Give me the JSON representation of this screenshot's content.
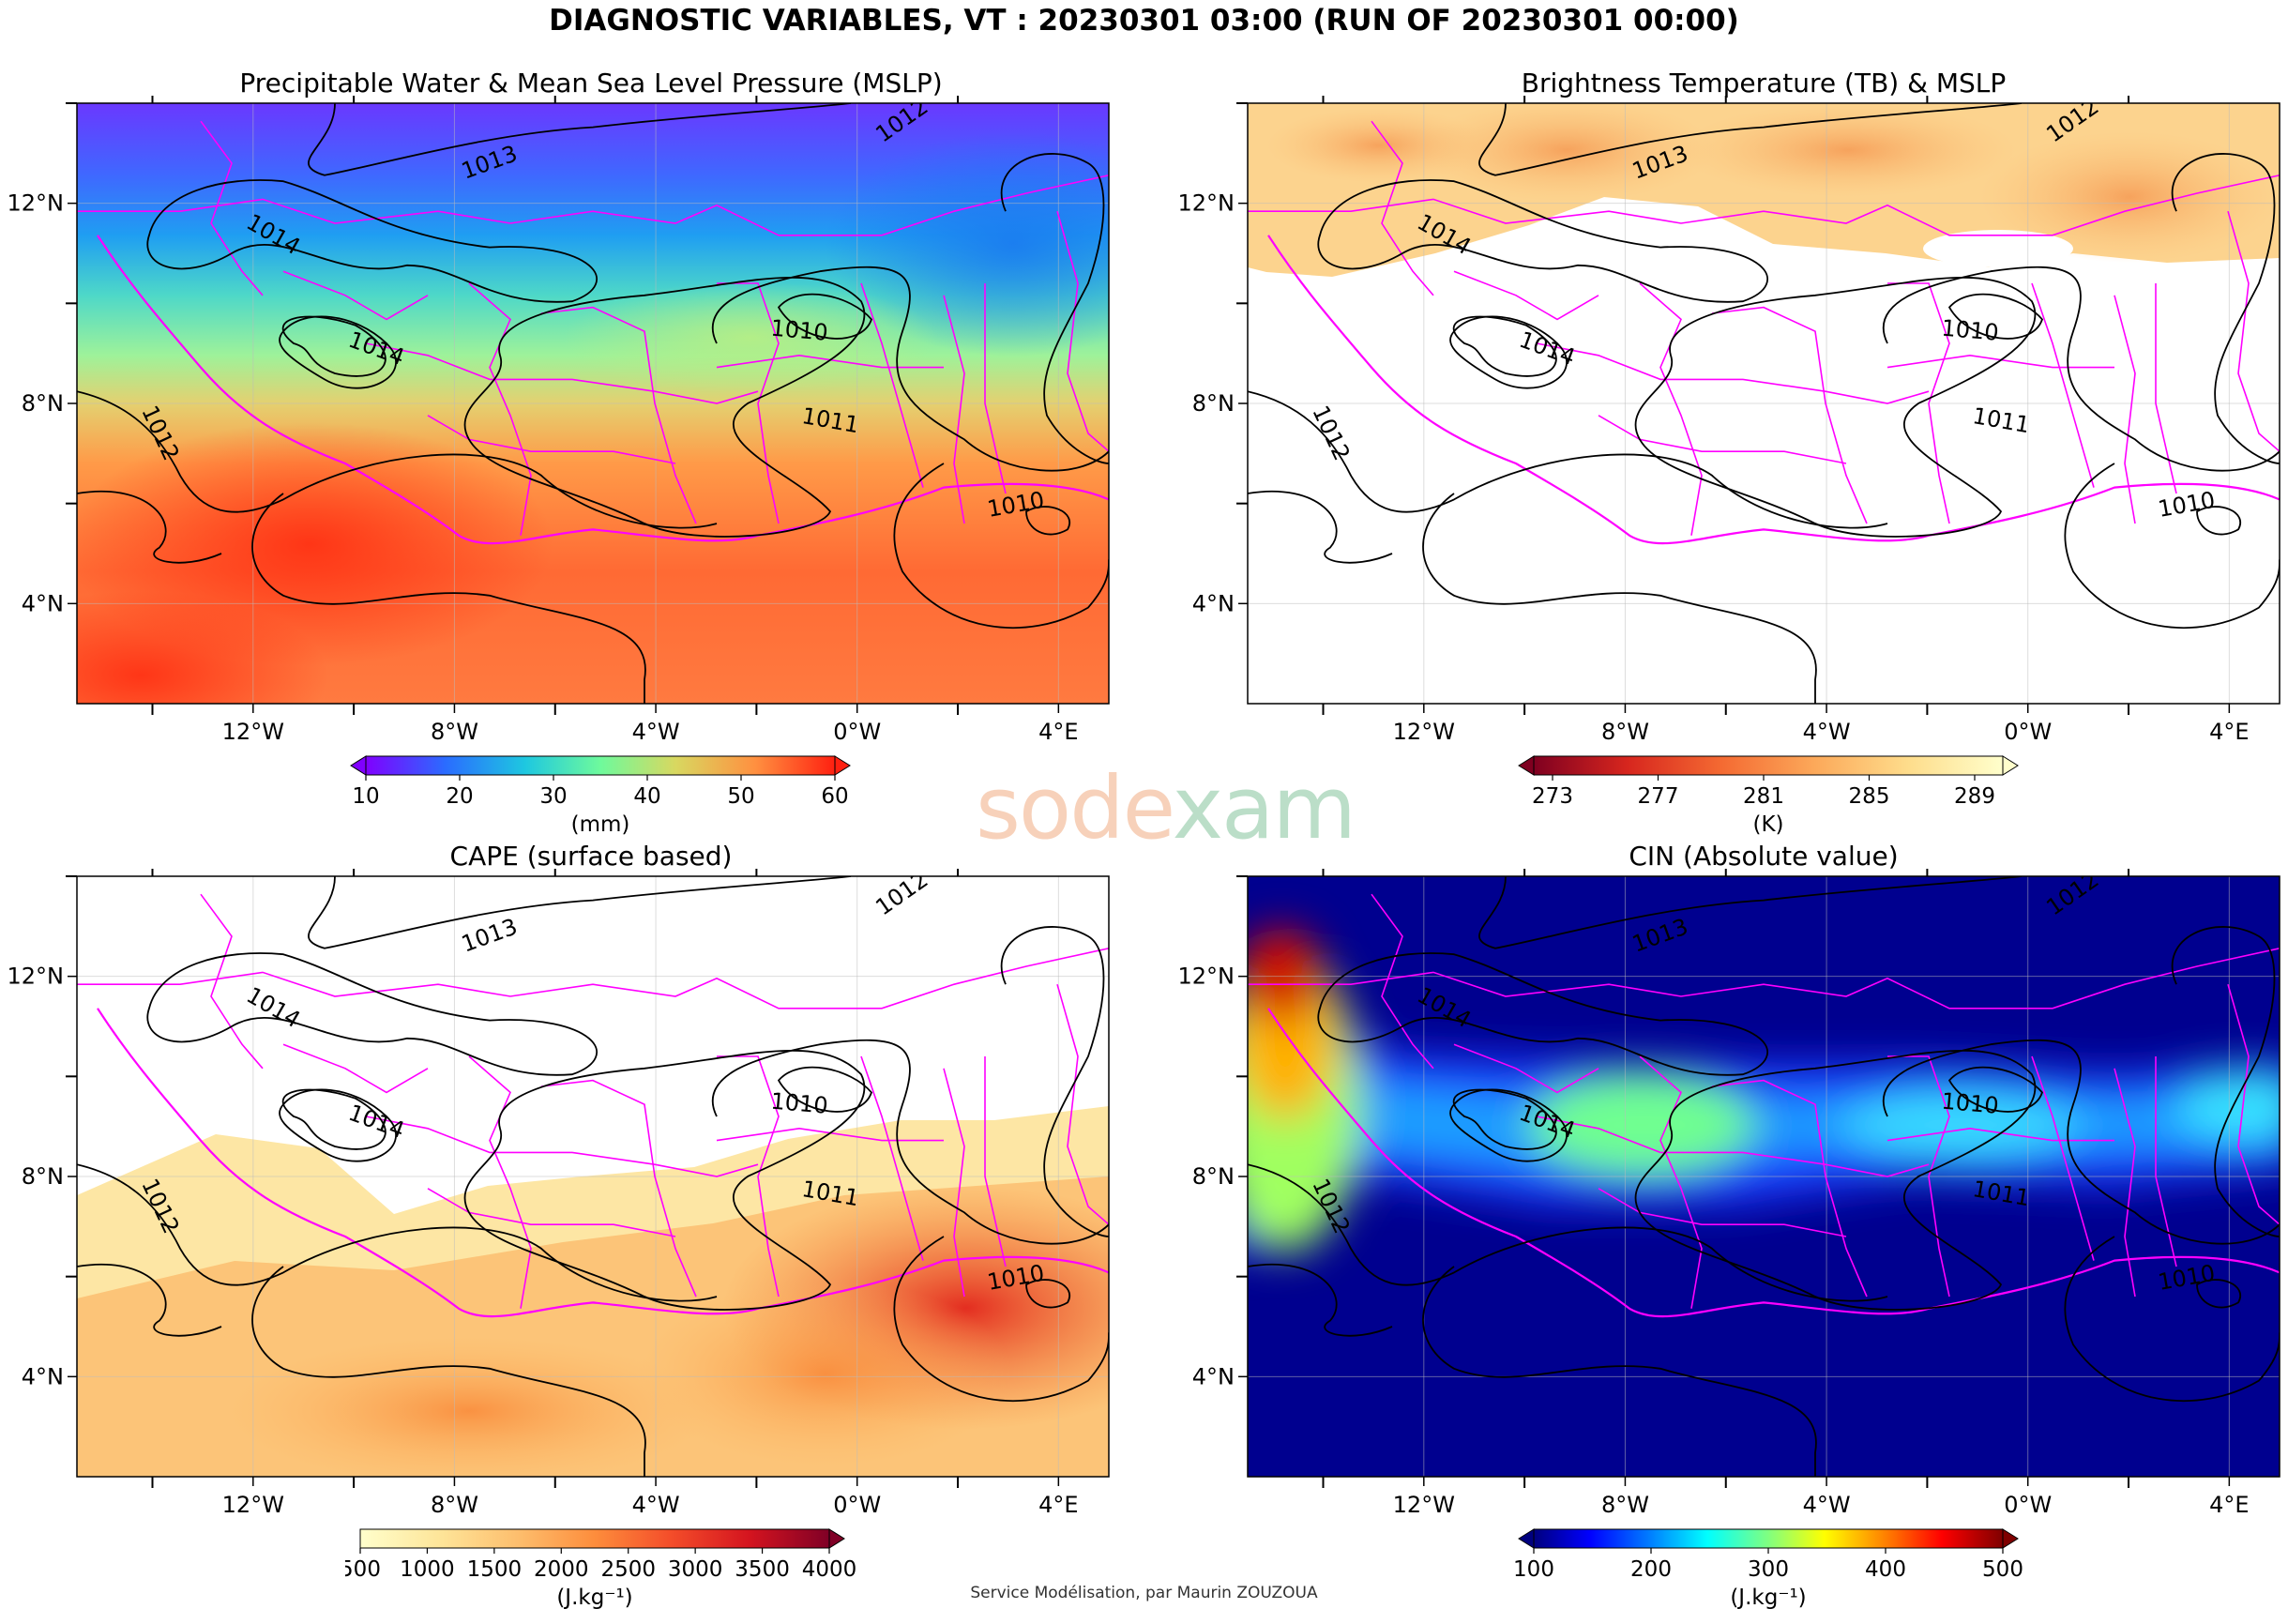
{
  "title": "DIAGNOSTIC VARIABLES, VT : 20230301 03:00 (RUN OF 20230301 00:00)",
  "credit": "Service Modélisation, par Maurin ZOUZOUA",
  "watermark": {
    "text_a": "sode",
    "text_b": "xam"
  },
  "axes": {
    "lon_range": [
      -15.5,
      5.0
    ],
    "lat_range": [
      2.0,
      14.0
    ],
    "x_ticks": [
      "12°W",
      "8°W",
      "4°W",
      "0°W",
      "4°E"
    ],
    "y_ticks": [
      "12°N",
      "8°N",
      "4°N"
    ]
  },
  "isobars": {
    "labels": [
      "1013",
      "1012",
      "1014",
      "1014",
      "1010",
      "1011",
      "1012",
      "1010"
    ],
    "color": "#000000"
  },
  "boundaries_color": "#ff00ff",
  "panels": [
    {
      "id": "pw",
      "title": "Precipitable Water & Mean Sea Level Pressure (MSLP)",
      "colorbar": {
        "ticks": [
          "10",
          "20",
          "30",
          "40",
          "50",
          "60"
        ],
        "unit": "(mm)",
        "colormap": "rainbow",
        "colors": [
          "#8000ff",
          "#2a6cff",
          "#1ec8e0",
          "#6efa9c",
          "#d8d860",
          "#ff9040",
          "#ff2010"
        ]
      }
    },
    {
      "id": "tb",
      "title": "Brightness Temperature (TB) & MSLP",
      "colorbar": {
        "ticks": [
          "273",
          "277",
          "281",
          "285",
          "289"
        ],
        "unit": "(K)",
        "colormap": "YlOrRd_r",
        "colors": [
          "#7f0020",
          "#d7261e",
          "#f46a32",
          "#fca95a",
          "#fedd8c",
          "#ffffcc"
        ]
      }
    },
    {
      "id": "cape",
      "title": "CAPE (surface based)",
      "colorbar": {
        "ticks": [
          "500",
          "1000",
          "1500",
          "2000",
          "2500",
          "3000",
          "3500",
          "4000"
        ],
        "unit": "(J.kg⁻¹)",
        "colormap": "YlOrRd",
        "colors": [
          "#ffffcc",
          "#fee599",
          "#fdbd6c",
          "#fd8d3c",
          "#f44e2a",
          "#d4141f",
          "#800026"
        ]
      }
    },
    {
      "id": "cin",
      "title": "CIN (Absolute value)",
      "colorbar": {
        "ticks": [
          "100",
          "200",
          "300",
          "400",
          "500"
        ],
        "unit": "(J.kg⁻¹)",
        "colormap": "jet",
        "colors": [
          "#00007f",
          "#0000ff",
          "#0080ff",
          "#00ffff",
          "#80ff80",
          "#ffff00",
          "#ff8000",
          "#ff0000",
          "#7f0000"
        ]
      }
    }
  ]
}
